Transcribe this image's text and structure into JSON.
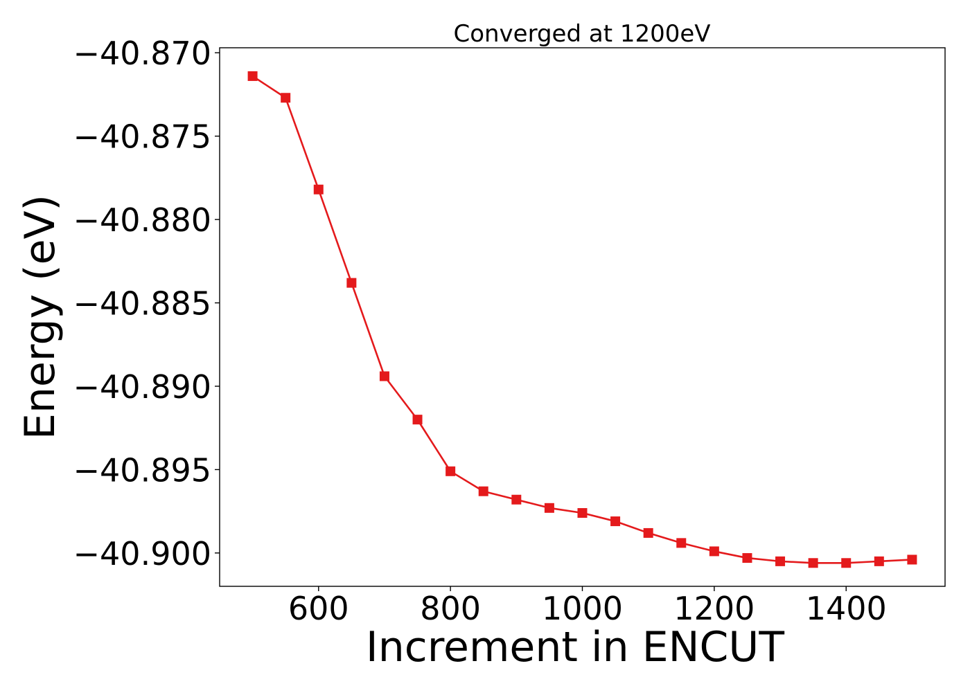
{
  "chart_data": {
    "type": "line",
    "title": "Converged at 1200eV",
    "xlabel": "Increment in ENCUT",
    "ylabel": "Energy (eV)",
    "xlim": [
      450,
      1550
    ],
    "ylim": [
      -40.902,
      -40.8697
    ],
    "x_ticks": [
      600,
      800,
      1000,
      1200,
      1400
    ],
    "x_tick_labels": [
      "600",
      "800",
      "1000",
      "1200",
      "1400"
    ],
    "y_ticks": [
      -40.87,
      -40.875,
      -40.88,
      -40.885,
      -40.89,
      -40.895,
      -40.9
    ],
    "y_tick_labels": [
      "−40.870",
      "−40.875",
      "−40.880",
      "−40.885",
      "−40.890",
      "−40.895",
      "−40.900"
    ],
    "grid": false,
    "series": [
      {
        "color": "#e41a1c",
        "marker": "square",
        "x": [
          500,
          550,
          600,
          650,
          700,
          750,
          800,
          850,
          900,
          950,
          1000,
          1050,
          1100,
          1150,
          1200,
          1250,
          1300,
          1350,
          1400,
          1450,
          1500
        ],
        "y": [
          -40.8714,
          -40.8727,
          -40.8782,
          -40.8838,
          -40.8894,
          -40.892,
          -40.8951,
          -40.8963,
          -40.8968,
          -40.8973,
          -40.8976,
          -40.8981,
          -40.8988,
          -40.8994,
          -40.8999,
          -40.9003,
          -40.9005,
          -40.9006,
          -40.9006,
          -40.9005,
          -40.9004
        ]
      }
    ]
  }
}
